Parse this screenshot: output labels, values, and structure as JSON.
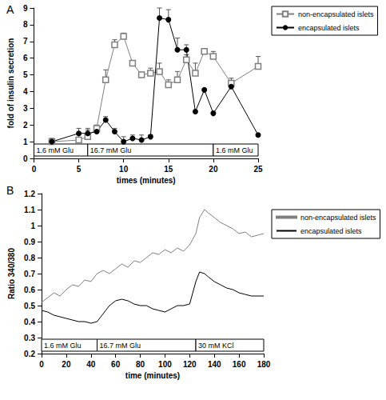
{
  "chart_data": [
    {
      "type": "line",
      "title": "A",
      "x_label": "times (minutes)",
      "y_label": "fold of insulin secretion",
      "x": [
        2,
        5,
        6,
        7,
        8,
        9,
        10,
        11,
        12,
        13,
        14,
        15,
        16,
        17,
        18,
        19,
        20,
        22,
        25
      ],
      "series": [
        {
          "name": "non-encapsulated islets",
          "color": "#808080",
          "marker": "open_square",
          "values": [
            1.0,
            1.1,
            1.3,
            1.8,
            4.7,
            6.8,
            7.3,
            5.7,
            5.0,
            5.1,
            5.2,
            4.4,
            4.7,
            5.9,
            5.1,
            6.4,
            6.1,
            4.5,
            5.5
          ],
          "errors": [
            0.1,
            0.3,
            0.5,
            0.2,
            0.6,
            0.3,
            0.2,
            0,
            0,
            0.3,
            0.5,
            0.3,
            0.5,
            0.3,
            0.6,
            0.1,
            0.3,
            0.3,
            0.6
          ]
        },
        {
          "name": "encapsulated islets",
          "color": "#000000",
          "marker": "circle",
          "values": [
            1.0,
            1.5,
            1.5,
            1.6,
            2.3,
            1.6,
            1.0,
            1.2,
            1.1,
            1.3,
            8.4,
            8.3,
            6.5,
            6.5,
            2.8,
            4.1,
            2.7,
            4.3,
            1.4
          ],
          "errors": [
            0.2,
            0.3,
            0.2,
            0,
            0.2,
            0.2,
            0.3,
            0.2,
            0.3,
            0.1,
            0.6,
            0.6,
            0.7,
            0.3,
            0,
            0,
            0,
            0,
            0
          ]
        }
      ],
      "xlim": [
        0,
        25
      ],
      "xticks": [
        0,
        5,
        10,
        15,
        20,
        25
      ],
      "ylim": [
        0,
        9
      ],
      "yticks": [
        0,
        1,
        2,
        3,
        4,
        5,
        6,
        7,
        8,
        9
      ],
      "grid": false,
      "legend": "right",
      "stimuli": [
        {
          "label": "1.6 mM Glu",
          "start": 0,
          "end": 6
        },
        {
          "label": "16.7 mM Glu",
          "start": 6,
          "end": 20
        },
        {
          "label": "1.6 mM Glu",
          "start": 20,
          "end": 25
        }
      ]
    },
    {
      "type": "line",
      "title": "B",
      "x_label": "time (minutes)",
      "y_label": "Ratio 340/380",
      "x": [
        0,
        5,
        10,
        15,
        20,
        25,
        30,
        35,
        40,
        45,
        50,
        55,
        60,
        65,
        70,
        75,
        80,
        85,
        90,
        95,
        100,
        105,
        110,
        115,
        120,
        125,
        128,
        132,
        135,
        140,
        145,
        150,
        155,
        160,
        165,
        170,
        175,
        180
      ],
      "series": [
        {
          "name": "non-encapsulated islets",
          "color": "#808080",
          "marker": "none",
          "values": [
            0.52,
            0.55,
            0.58,
            0.56,
            0.6,
            0.63,
            0.62,
            0.66,
            0.65,
            0.7,
            0.72,
            0.7,
            0.73,
            0.76,
            0.74,
            0.78,
            0.77,
            0.8,
            0.83,
            0.82,
            0.85,
            0.83,
            0.86,
            0.84,
            0.88,
            0.95,
            1.05,
            1.1,
            1.08,
            1.05,
            1.02,
            1.0,
            0.98,
            0.95,
            0.96,
            0.93,
            0.94,
            0.95
          ]
        },
        {
          "name": "encapsulated islets",
          "color": "#000000",
          "marker": "none",
          "values": [
            0.47,
            0.46,
            0.44,
            0.43,
            0.42,
            0.41,
            0.4,
            0.4,
            0.39,
            0.4,
            0.45,
            0.5,
            0.53,
            0.54,
            0.53,
            0.51,
            0.5,
            0.5,
            0.48,
            0.47,
            0.46,
            0.48,
            0.5,
            0.5,
            0.51,
            0.65,
            0.71,
            0.7,
            0.68,
            0.65,
            0.63,
            0.61,
            0.6,
            0.58,
            0.57,
            0.56,
            0.56,
            0.56
          ]
        }
      ],
      "xlim": [
        0,
        180
      ],
      "xticks": [
        0,
        20,
        40,
        60,
        80,
        100,
        120,
        140,
        160,
        180
      ],
      "ylim": [
        0.2,
        1.2
      ],
      "yticks": [
        0.2,
        0.3,
        0.4,
        0.5,
        0.6,
        0.7,
        0.8,
        0.9,
        1,
        1.1,
        1.2
      ],
      "grid": false,
      "legend": "right",
      "stimuli": [
        {
          "label": "1.6 mM Glu",
          "start": 0,
          "end": 45
        },
        {
          "label": "16.7 mM Glu",
          "start": 45,
          "end": 125
        },
        {
          "label": "30 mM KCl",
          "start": 125,
          "end": 180
        }
      ]
    }
  ]
}
